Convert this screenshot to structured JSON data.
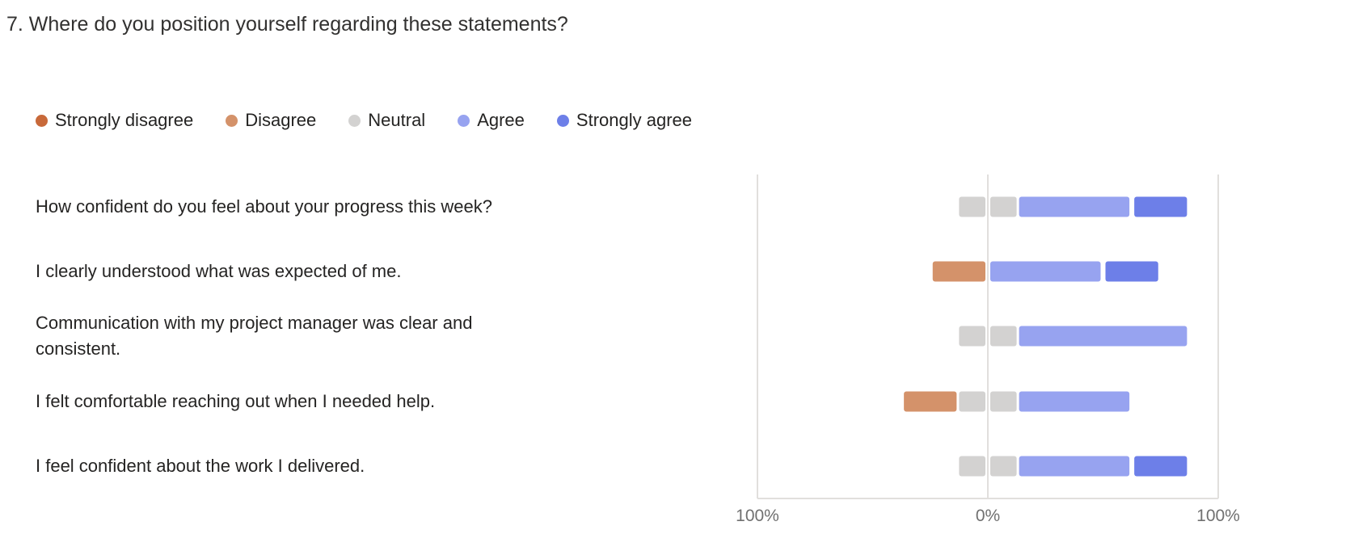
{
  "question": {
    "title": "7. Where do you position yourself regarding these statements?"
  },
  "colors": {
    "strongly_disagree": "#C8693A",
    "disagree": "#D4926A",
    "neutral": "#D3D2D1",
    "agree": "#97A3F0",
    "strongly_agree": "#6D7FE8",
    "axis": "#E1DFDD"
  },
  "chart_data": {
    "type": "bar",
    "subtype": "diverging-stacked-horizontal",
    "legend_position": "top-left",
    "legend": [
      {
        "key": "strongly_disagree",
        "label": "Strongly disagree"
      },
      {
        "key": "disagree",
        "label": "Disagree"
      },
      {
        "key": "neutral",
        "label": "Neutral"
      },
      {
        "key": "agree",
        "label": "Agree"
      },
      {
        "key": "strongly_agree",
        "label": "Strongly agree"
      }
    ],
    "categories": [
      "How confident do you feel about your progress this week?",
      "I clearly understood what was expected of me.",
      "Communication with my project manager was clear and consistent.",
      "I felt comfortable reaching out when I needed help.",
      "I feel confident about the work I delivered."
    ],
    "series": [
      {
        "name": "Strongly disagree",
        "key": "strongly_disagree",
        "values": [
          0,
          0,
          0,
          0,
          0
        ]
      },
      {
        "name": "Disagree",
        "key": "disagree",
        "values": [
          0,
          25,
          0,
          25,
          0
        ]
      },
      {
        "name": "Neutral",
        "key": "neutral",
        "values": [
          25,
          0,
          25,
          25,
          25
        ]
      },
      {
        "name": "Agree",
        "key": "agree",
        "values": [
          50,
          50,
          75,
          50,
          50
        ]
      },
      {
        "name": "Strongly agree",
        "key": "strongly_agree",
        "values": [
          25,
          25,
          0,
          0,
          25
        ]
      }
    ],
    "xlim": [
      -100,
      100
    ],
    "tick_labels": [
      "100%",
      "0%",
      "100%"
    ],
    "grid": false
  }
}
